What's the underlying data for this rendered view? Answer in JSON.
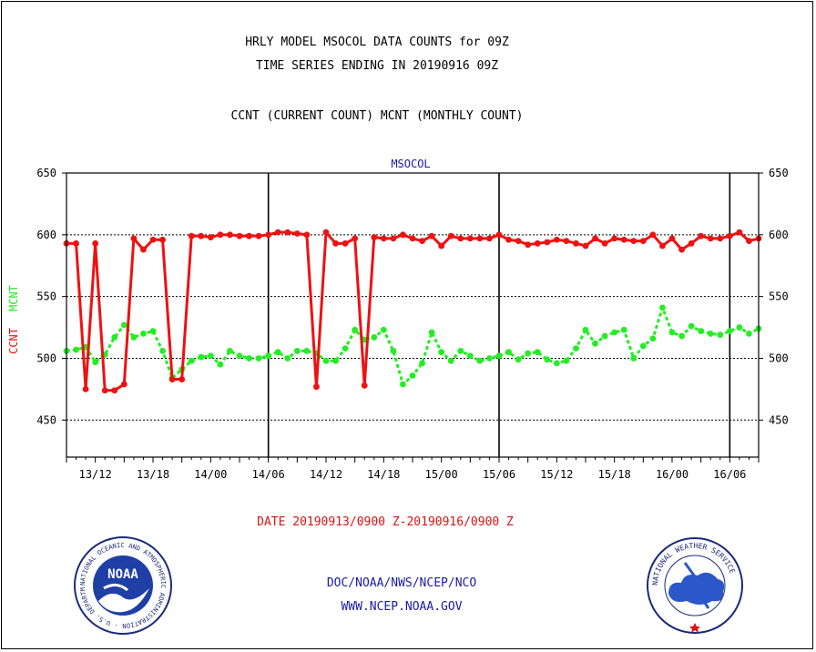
{
  "header": {
    "title_line1": "HRLY MODEL MSOCOL DATA COUNTS for 09Z",
    "title_line2": "TIME SERIES ENDING IN 20190916 09Z",
    "subtitle": "CCNT (CURRENT COUNT) MCNT (MONTHLY COUNT)"
  },
  "footer": {
    "date_range": "DATE 20190913/0900 Z-20190916/0900 Z",
    "org": "DOC/NOAA/NWS/NCEP/NCO",
    "url": "WWW.NCEP.NOAA.GOV"
  },
  "logos": {
    "noaa_text": "NOAA",
    "noaa_ring": "NATIONAL OCEANIC AND ATMOSPHERIC ADMINISTRATION · U.S. DEPARTMENT OF COMMERCE",
    "nws_ring": "NATIONAL WEATHER SERVICE"
  },
  "colors": {
    "ccnt": "#ee1111",
    "mcnt": "#22ee22",
    "accent_blue": "#1a1aa8",
    "title_red": "#dd1111"
  },
  "chart_data": {
    "type": "line",
    "title": "MSOCOL",
    "ylabel_parts": [
      "CCNT",
      "MCNT"
    ],
    "ylim": [
      420,
      650
    ],
    "yticks": [
      450,
      500,
      550,
      600,
      650
    ],
    "hlines": [
      450,
      500,
      550,
      600
    ],
    "x_range_hours": [
      0,
      72
    ],
    "xticks": [
      {
        "label": "13/12",
        "hour": 3
      },
      {
        "label": "13/18",
        "hour": 9
      },
      {
        "label": "14/00",
        "hour": 15
      },
      {
        "label": "14/06",
        "hour": 21
      },
      {
        "label": "14/12",
        "hour": 27
      },
      {
        "label": "14/18",
        "hour": 33
      },
      {
        "label": "15/00",
        "hour": 39
      },
      {
        "label": "15/06",
        "hour": 45
      },
      {
        "label": "15/12",
        "hour": 51
      },
      {
        "label": "15/18",
        "hour": 57
      },
      {
        "label": "16/00",
        "hour": 63
      },
      {
        "label": "16/06",
        "hour": 69
      }
    ],
    "day_boundaries_hour": [
      21,
      45,
      69
    ],
    "series": [
      {
        "name": "CCNT",
        "x": [
          0,
          1,
          2,
          3,
          4,
          5,
          6,
          7,
          8,
          9,
          10,
          11,
          12,
          13,
          14,
          15,
          16,
          17,
          18,
          19,
          20,
          21,
          22,
          23,
          24,
          25,
          26,
          27,
          28,
          29,
          30,
          31,
          32,
          33,
          34,
          35,
          36,
          37,
          38,
          39,
          40,
          41,
          42,
          43,
          44,
          45,
          46,
          47,
          48,
          49,
          50,
          51,
          52,
          53,
          54,
          55,
          56,
          57,
          58,
          59,
          60,
          61,
          62,
          63,
          64,
          65,
          66,
          67,
          68,
          69,
          70,
          71,
          72
        ],
        "values": [
          593,
          593,
          475,
          593,
          474,
          474,
          479,
          597,
          588,
          596,
          596,
          483,
          483,
          599,
          599,
          598,
          600,
          600,
          599,
          599,
          599,
          600,
          602,
          602,
          601,
          600,
          477,
          602,
          593,
          593,
          597,
          478,
          598,
          597,
          597,
          600,
          597,
          595,
          599,
          591,
          599,
          597,
          597,
          597,
          597,
          600,
          596,
          595,
          592,
          593,
          594,
          596,
          595,
          593,
          591,
          597,
          593,
          597,
          596,
          595,
          595,
          600,
          591,
          597,
          588,
          593,
          599,
          597,
          597,
          599,
          602,
          595,
          597
        ]
      },
      {
        "name": "MCNT",
        "x": [
          0,
          1,
          2,
          3,
          4,
          5,
          6,
          7,
          8,
          9,
          10,
          11,
          12,
          13,
          14,
          15,
          16,
          17,
          18,
          19,
          20,
          21,
          22,
          23,
          24,
          25,
          26,
          27,
          28,
          29,
          30,
          31,
          32,
          33,
          34,
          35,
          36,
          37,
          38,
          39,
          40,
          41,
          42,
          43,
          44,
          45,
          46,
          47,
          48,
          49,
          50,
          51,
          52,
          53,
          54,
          55,
          56,
          57,
          58,
          59,
          60,
          61,
          62,
          63,
          64,
          65,
          66,
          67,
          68,
          69,
          70,
          71,
          72
        ],
        "values": [
          506,
          507,
          509,
          497,
          503,
          517,
          527,
          517,
          520,
          522,
          506,
          484,
          491,
          498,
          501,
          502,
          495,
          506,
          502,
          500,
          500,
          502,
          505,
          500,
          506,
          506,
          504,
          498,
          498,
          508,
          523,
          515,
          517,
          523,
          506,
          479,
          486,
          496,
          521,
          505,
          498,
          506,
          502,
          498,
          500,
          502,
          505,
          499,
          504,
          505,
          499,
          496,
          498,
          508,
          523,
          512,
          518,
          521,
          523,
          500,
          510,
          516,
          541,
          521,
          518,
          526,
          522,
          520,
          519,
          522,
          525,
          520,
          524
        ]
      }
    ]
  }
}
